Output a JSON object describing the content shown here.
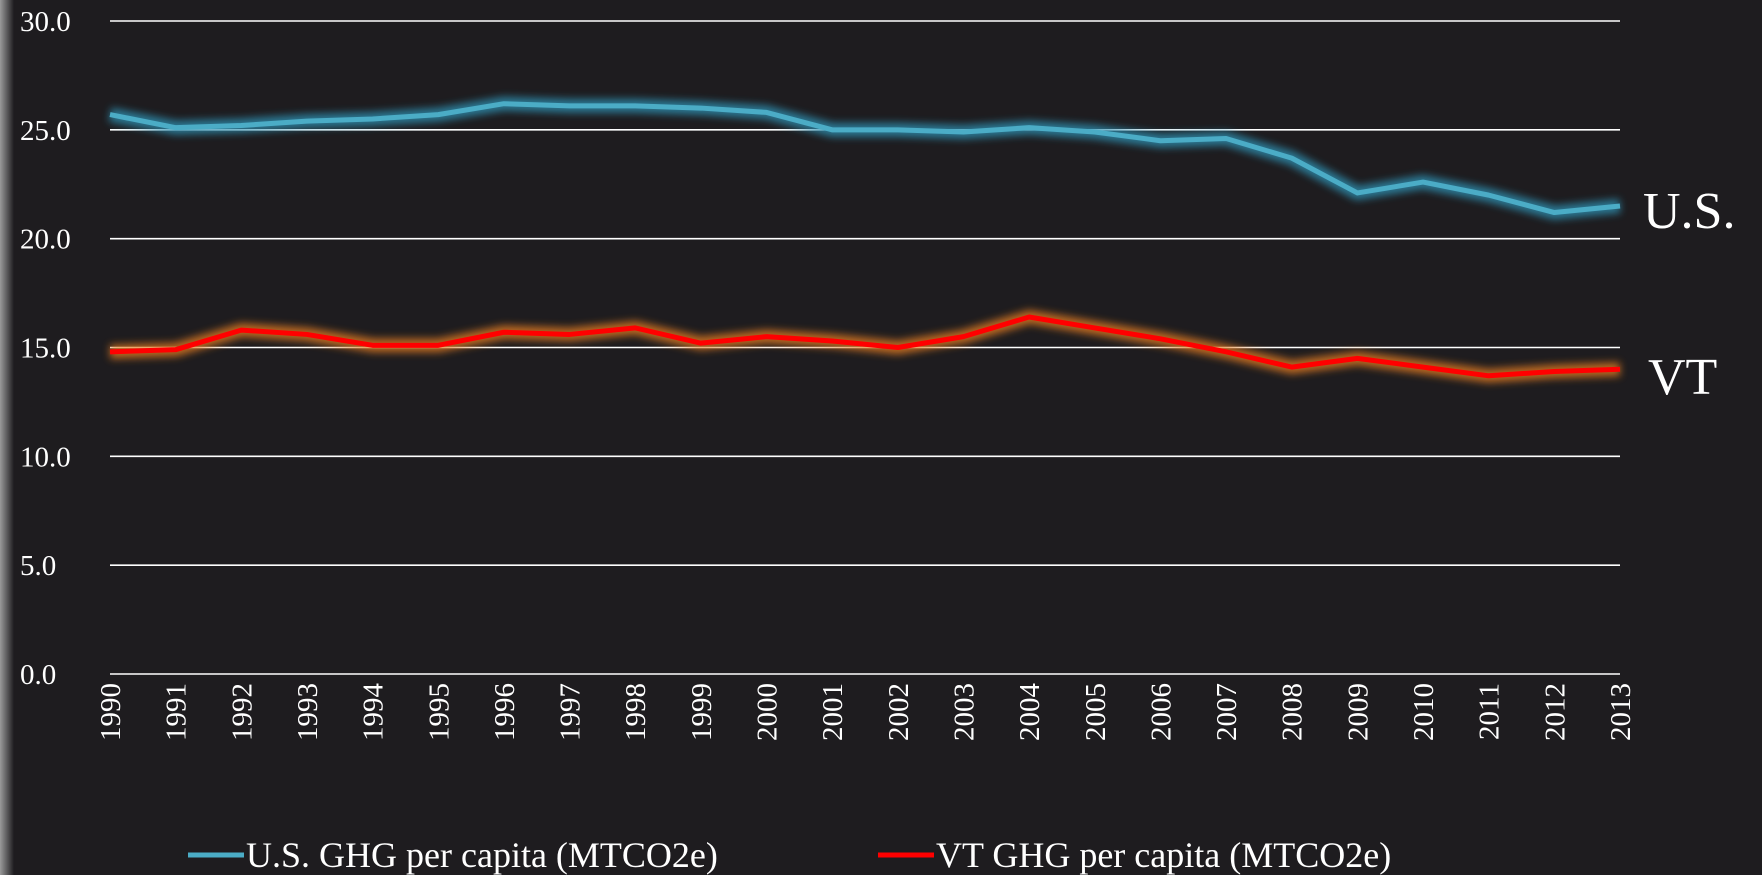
{
  "chart_data": {
    "type": "line",
    "categories": [
      "1990",
      "1991",
      "1992",
      "1993",
      "1994",
      "1995",
      "1996",
      "1997",
      "1998",
      "1999",
      "2000",
      "2001",
      "2002",
      "2003",
      "2004",
      "2005",
      "2006",
      "2007",
      "2008",
      "2009",
      "2010",
      "2011",
      "2012",
      "2013"
    ],
    "series": [
      {
        "name": "U.S. GHG per capita (MTCO2e)",
        "color": "#4bacc6",
        "glow": "#2e8fb0",
        "values": [
          25.7,
          25.1,
          25.2,
          25.4,
          25.5,
          25.7,
          26.2,
          26.1,
          26.1,
          26.0,
          25.8,
          25.0,
          25.0,
          24.9,
          25.1,
          24.9,
          24.5,
          24.6,
          23.7,
          22.1,
          22.6,
          22.0,
          21.2,
          21.5
        ]
      },
      {
        "name": "VT GHG per capita (MTCO2e)",
        "color": "#ff0000",
        "glow": "#e07a20",
        "values": [
          14.8,
          14.9,
          15.8,
          15.6,
          15.1,
          15.1,
          15.7,
          15.6,
          15.9,
          15.2,
          15.5,
          15.3,
          15.0,
          15.5,
          16.4,
          15.9,
          15.4,
          14.8,
          14.1,
          14.5,
          14.1,
          13.7,
          13.9,
          14.0
        ]
      }
    ],
    "annotations": [
      "U.S.",
      "VT"
    ],
    "ylim": [
      0,
      30
    ],
    "yticks": [
      {
        "value": 0,
        "label": "0.0"
      },
      {
        "value": 5,
        "label": "5.0"
      },
      {
        "value": 10,
        "label": "10.0"
      },
      {
        "value": 15,
        "label": "15.0"
      },
      {
        "value": 20,
        "label": "20.0"
      },
      {
        "value": 25,
        "label": "25.0"
      },
      {
        "value": 30,
        "label": "30.0"
      }
    ],
    "grid": true
  }
}
